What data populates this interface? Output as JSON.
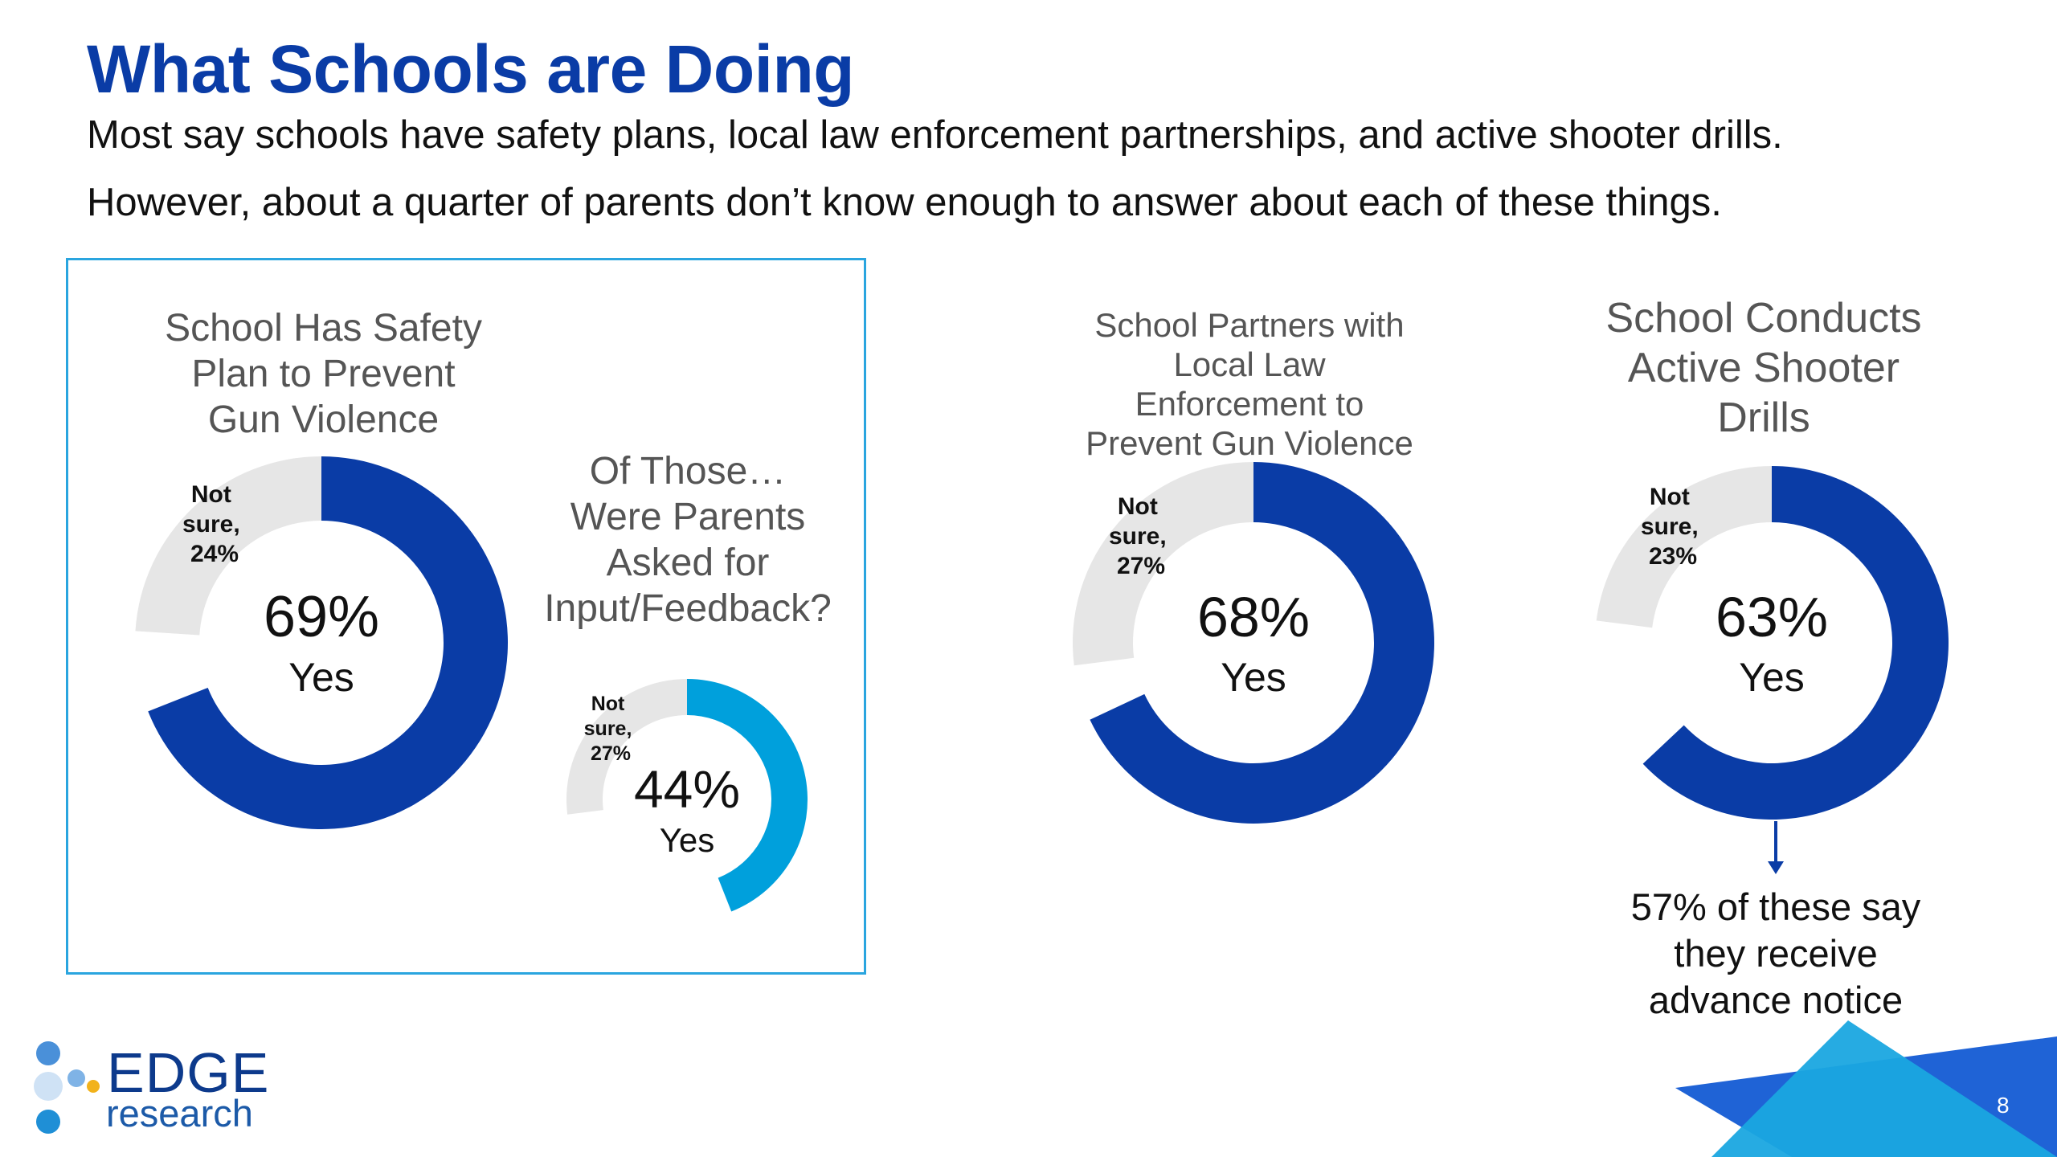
{
  "title": "What Schools are Doing",
  "subtitle_line1": "Most say schools have safety plans, local law enforcement partnerships, and active shooter drills.",
  "subtitle_line2": "However, about a quarter of parents don’t know enough to answer about each of these things.",
  "colors": {
    "title": "#0a3ca6",
    "yes_dark": "#0a3ca6",
    "yes_light": "#00a0dc",
    "not_sure": "#e6e6e6",
    "box_border": "#2aa5df"
  },
  "chart_data": [
    {
      "type": "pie",
      "title_lines": [
        "School Has Safety",
        "Plan to Prevent",
        "Gun Violence"
      ],
      "slices": [
        {
          "label": "Yes",
          "value": 69
        },
        {
          "label": "Not sure",
          "value": 24
        }
      ],
      "center_value": "69%",
      "center_label": "Yes",
      "not_sure_lines": [
        "Not",
        "sure,",
        "24%"
      ]
    },
    {
      "type": "pie",
      "title_lines": [
        "Of Those…",
        "Were Parents",
        "Asked for",
        "Input/Feedback?"
      ],
      "slices": [
        {
          "label": "Yes",
          "value": 44
        },
        {
          "label": "Not sure",
          "value": 27
        }
      ],
      "center_value": "44%",
      "center_label": "Yes",
      "not_sure_lines": [
        "Not",
        "sure,",
        "27%"
      ]
    },
    {
      "type": "pie",
      "title_lines": [
        "School Partners with",
        "Local Law",
        "Enforcement to",
        "Prevent Gun Violence"
      ],
      "slices": [
        {
          "label": "Yes",
          "value": 68
        },
        {
          "label": "Not sure",
          "value": 27
        }
      ],
      "center_value": "68%",
      "center_label": "Yes",
      "not_sure_lines": [
        "Not",
        "sure,",
        "27%"
      ]
    },
    {
      "type": "pie",
      "title_lines": [
        "School Conducts",
        "Active Shooter",
        "Drills"
      ],
      "slices": [
        {
          "label": "Yes",
          "value": 63
        },
        {
          "label": "Not sure",
          "value": 23
        }
      ],
      "center_value": "63%",
      "center_label": "Yes",
      "not_sure_lines": [
        "Not",
        "sure,",
        "23%"
      ]
    }
  ],
  "drill_note_lines": [
    "57% of these say",
    "they receive",
    "advance notice"
  ],
  "logo": {
    "name": "EDGE",
    "sub": "research"
  },
  "page_number": "8"
}
